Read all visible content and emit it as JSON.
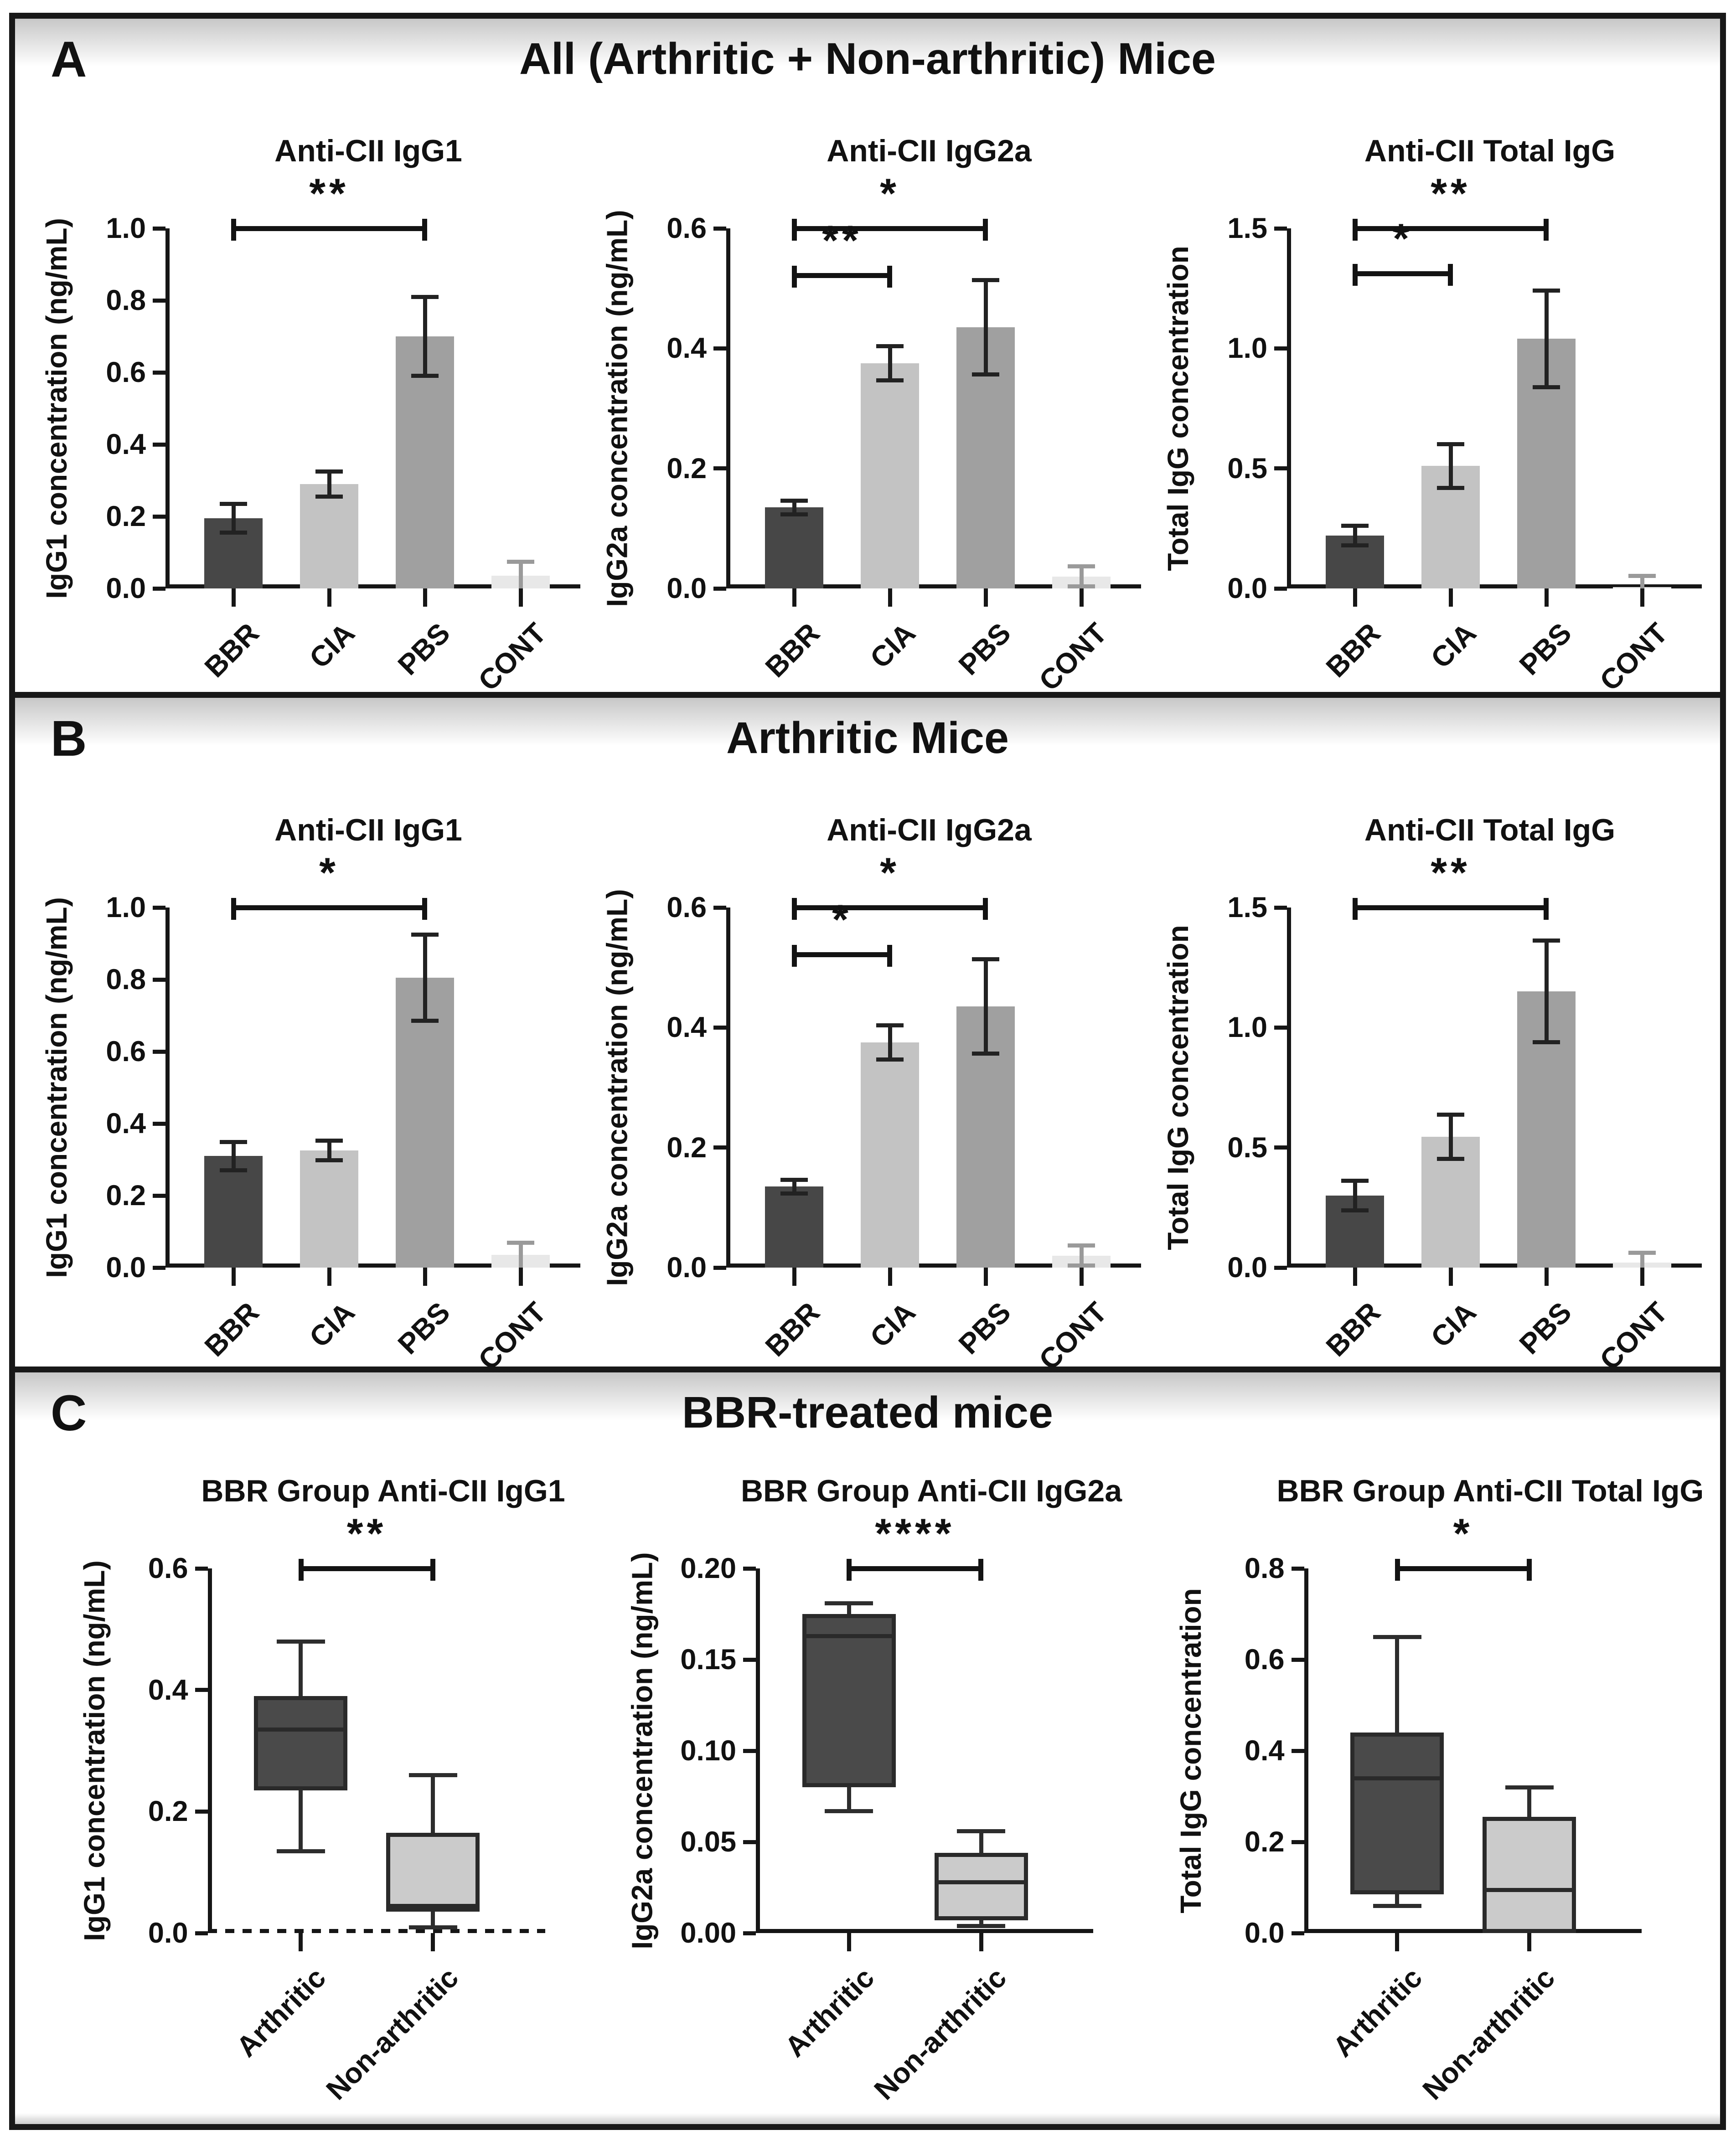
{
  "panels": [
    {
      "label": "A",
      "title": "All (Arthritic + Non-arthritic) Mice",
      "charts": [
        0,
        1,
        2
      ]
    },
    {
      "label": "B",
      "title": "Arthritic Mice",
      "charts": [
        3,
        4,
        5
      ]
    },
    {
      "label": "C",
      "title": "BBR-treated mice",
      "charts": [
        6,
        7,
        8
      ]
    }
  ],
  "chart_data": [
    {
      "type": "bar",
      "title": "Anti-CII IgG1",
      "xlabel": "",
      "ylabel": "IgG1 concentration (ng/mL)",
      "categories": [
        "BBR",
        "CIA",
        "PBS",
        "CONT"
      ],
      "values": [
        0.195,
        0.29,
        0.7,
        0.035
      ],
      "errors": [
        0.045,
        0.04,
        0.115,
        0.045
      ],
      "bar_colors": [
        "#474747",
        "#c3c3c3",
        "#a0a0a0",
        "#e8e8e8"
      ],
      "error_colors": [
        "#222222",
        "#222222",
        "#222222",
        "#9a9a9a"
      ],
      "ylim": [
        0,
        1.0
      ],
      "grid": false,
      "yticks": [
        {
          "v": 0.0,
          "t": "0.0"
        },
        {
          "v": 0.2,
          "t": "0.2"
        },
        {
          "v": 0.4,
          "t": "0.4"
        },
        {
          "v": 0.6,
          "t": "0.6"
        },
        {
          "v": 0.8,
          "t": "0.8"
        },
        {
          "v": 1.0,
          "t": "1.0"
        }
      ],
      "significance": [
        {
          "from": 0,
          "to": 2,
          "yfrac": 1.0,
          "label": "**"
        }
      ]
    },
    {
      "type": "bar",
      "title": "Anti-CII IgG2a",
      "xlabel": "",
      "ylabel": "IgG2a concentration (ng/mL)",
      "categories": [
        "BBR",
        "CIA",
        "PBS",
        "CONT"
      ],
      "values": [
        0.135,
        0.375,
        0.435,
        0.02
      ],
      "errors": [
        0.015,
        0.032,
        0.082,
        0.02
      ],
      "bar_colors": [
        "#474747",
        "#c3c3c3",
        "#a0a0a0",
        "#e8e8e8"
      ],
      "error_colors": [
        "#222222",
        "#222222",
        "#222222",
        "#9a9a9a"
      ],
      "ylim": [
        0,
        0.6
      ],
      "grid": false,
      "yticks": [
        {
          "v": 0.0,
          "t": "0.0"
        },
        {
          "v": 0.2,
          "t": "0.2"
        },
        {
          "v": 0.4,
          "t": "0.4"
        },
        {
          "v": 0.6,
          "t": "0.6"
        }
      ],
      "significance": [
        {
          "from": 0,
          "to": 2,
          "yfrac": 1.0,
          "label": "*"
        },
        {
          "from": 0,
          "to": 1,
          "yfrac": 0.87,
          "label": "**"
        }
      ]
    },
    {
      "type": "bar",
      "title": "Anti-CII Total IgG",
      "xlabel": "",
      "ylabel": "Total IgG concentration",
      "categories": [
        "BBR",
        "CIA",
        "PBS",
        "CONT"
      ],
      "values": [
        0.22,
        0.51,
        1.04,
        0.005
      ],
      "errors": [
        0.05,
        0.1,
        0.21,
        0.055
      ],
      "bar_colors": [
        "#474747",
        "#c3c3c3",
        "#a0a0a0",
        "#e8e8e8"
      ],
      "error_colors": [
        "#222222",
        "#222222",
        "#222222",
        "#9a9a9a"
      ],
      "ylim": [
        0,
        1.5
      ],
      "grid": false,
      "yticks": [
        {
          "v": 0.0,
          "t": "0.0"
        },
        {
          "v": 0.5,
          "t": "0.5"
        },
        {
          "v": 1.0,
          "t": "1.0"
        },
        {
          "v": 1.5,
          "t": "1.5"
        }
      ],
      "significance": [
        {
          "from": 0,
          "to": 2,
          "yfrac": 1.0,
          "label": "**"
        },
        {
          "from": 0,
          "to": 1,
          "yfrac": 0.875,
          "label": "*"
        }
      ]
    },
    {
      "type": "bar",
      "title": "Anti-CII IgG1",
      "xlabel": "",
      "ylabel": "IgG1 concentration (ng/mL)",
      "categories": [
        "BBR",
        "CIA",
        "PBS",
        "CONT"
      ],
      "values": [
        0.31,
        0.325,
        0.805,
        0.035
      ],
      "errors": [
        0.045,
        0.033,
        0.125,
        0.04
      ],
      "bar_colors": [
        "#474747",
        "#c3c3c3",
        "#a0a0a0",
        "#e8e8e8"
      ],
      "error_colors": [
        "#222222",
        "#222222",
        "#222222",
        "#9a9a9a"
      ],
      "ylim": [
        0,
        1.0
      ],
      "grid": false,
      "yticks": [
        {
          "v": 0.0,
          "t": "0.0"
        },
        {
          "v": 0.2,
          "t": "0.2"
        },
        {
          "v": 0.4,
          "t": "0.4"
        },
        {
          "v": 0.6,
          "t": "0.6"
        },
        {
          "v": 0.8,
          "t": "0.8"
        },
        {
          "v": 1.0,
          "t": "1.0"
        }
      ],
      "significance": [
        {
          "from": 0,
          "to": 2,
          "yfrac": 1.0,
          "label": "*"
        }
      ]
    },
    {
      "type": "bar",
      "title": "Anti-CII IgG2a",
      "xlabel": "",
      "ylabel": "IgG2a concentration (ng/mL)",
      "categories": [
        "BBR",
        "CIA",
        "PBS",
        "CONT"
      ],
      "values": [
        0.135,
        0.375,
        0.435,
        0.02
      ],
      "errors": [
        0.015,
        0.032,
        0.082,
        0.02
      ],
      "bar_colors": [
        "#474747",
        "#c3c3c3",
        "#a0a0a0",
        "#e8e8e8"
      ],
      "error_colors": [
        "#222222",
        "#222222",
        "#222222",
        "#9a9a9a"
      ],
      "ylim": [
        0,
        0.6
      ],
      "grid": false,
      "yticks": [
        {
          "v": 0.0,
          "t": "0.0"
        },
        {
          "v": 0.2,
          "t": "0.2"
        },
        {
          "v": 0.4,
          "t": "0.4"
        },
        {
          "v": 0.6,
          "t": "0.6"
        }
      ],
      "significance": [
        {
          "from": 0,
          "to": 2,
          "yfrac": 1.0,
          "label": "*"
        },
        {
          "from": 0,
          "to": 1,
          "yfrac": 0.87,
          "label": "*"
        }
      ]
    },
    {
      "type": "bar",
      "title": "Anti-CII Total IgG",
      "xlabel": "",
      "ylabel": "Total IgG concentration",
      "categories": [
        "BBR",
        "CIA",
        "PBS",
        "CONT"
      ],
      "values": [
        0.3,
        0.545,
        1.15,
        0.02
      ],
      "errors": [
        0.07,
        0.1,
        0.22,
        0.05
      ],
      "bar_colors": [
        "#474747",
        "#c3c3c3",
        "#a0a0a0",
        "#e8e8e8"
      ],
      "error_colors": [
        "#222222",
        "#222222",
        "#222222",
        "#9a9a9a"
      ],
      "ylim": [
        0,
        1.5
      ],
      "grid": false,
      "yticks": [
        {
          "v": 0.0,
          "t": "0.0"
        },
        {
          "v": 0.5,
          "t": "0.5"
        },
        {
          "v": 1.0,
          "t": "1.0"
        },
        {
          "v": 1.5,
          "t": "1.5"
        }
      ],
      "significance": [
        {
          "from": 0,
          "to": 2,
          "yfrac": 1.0,
          "label": "**"
        }
      ]
    },
    {
      "type": "box",
      "title": "BBR Group Anti-CII IgG1",
      "xlabel": "",
      "ylabel": "IgG1 concentration (ng/mL)",
      "categories": [
        "Arthritic",
        "Non-arthritic"
      ],
      "boxes": [
        {
          "whislo": 0.135,
          "q1": 0.235,
          "med": 0.335,
          "q3": 0.39,
          "whishi": 0.48,
          "color": "#4a4a4a"
        },
        {
          "whislo": 0.01,
          "q1": 0.035,
          "med": 0.045,
          "q3": 0.165,
          "whishi": 0.26,
          "color": "#cbcbcb"
        }
      ],
      "ylim": [
        0,
        0.6
      ],
      "grid": false,
      "dashed_axis": true,
      "yticks": [
        {
          "v": 0.0,
          "t": "0.0"
        },
        {
          "v": 0.2,
          "t": "0.2"
        },
        {
          "v": 0.4,
          "t": "0.4"
        },
        {
          "v": 0.6,
          "t": "0.6"
        }
      ],
      "significance": [
        {
          "from": 0,
          "to": 1,
          "yfrac": 1.0,
          "label": "**"
        }
      ]
    },
    {
      "type": "box",
      "title": "BBR Group Anti-CII IgG2a",
      "xlabel": "",
      "ylabel": "IgG2a concentration (ng/mL)",
      "categories": [
        "Arthritic",
        "Non-arthritic"
      ],
      "boxes": [
        {
          "whislo": 0.067,
          "q1": 0.08,
          "med": 0.163,
          "q3": 0.175,
          "whishi": 0.181,
          "color": "#4a4a4a"
        },
        {
          "whislo": 0.004,
          "q1": 0.007,
          "med": 0.028,
          "q3": 0.044,
          "whishi": 0.056,
          "color": "#cbcbcb"
        }
      ],
      "ylim": [
        0,
        0.2
      ],
      "grid": false,
      "dashed_axis": false,
      "yticks": [
        {
          "v": 0.0,
          "t": "0.00"
        },
        {
          "v": 0.05,
          "t": "0.05"
        },
        {
          "v": 0.1,
          "t": "0.10"
        },
        {
          "v": 0.15,
          "t": "0.15"
        },
        {
          "v": 0.2,
          "t": "0.20"
        }
      ],
      "significance": [
        {
          "from": 0,
          "to": 1,
          "yfrac": 1.0,
          "label": "****"
        }
      ]
    },
    {
      "type": "box",
      "title": "BBR Group Anti-CII Total IgG",
      "xlabel": "",
      "ylabel": "Total IgG concentration",
      "categories": [
        "Arthritic",
        "Non-arthritic"
      ],
      "boxes": [
        {
          "whislo": 0.06,
          "q1": 0.085,
          "med": 0.34,
          "q3": 0.44,
          "whishi": 0.65,
          "color": "#4a4a4a"
        },
        {
          "whislo": 0.0,
          "q1": 0.0,
          "med": 0.095,
          "q3": 0.255,
          "whishi": 0.32,
          "color": "#cbcbcb"
        }
      ],
      "ylim": [
        0,
        0.8
      ],
      "grid": false,
      "dashed_axis": false,
      "yticks": [
        {
          "v": 0.0,
          "t": "0.0"
        },
        {
          "v": 0.2,
          "t": "0.2"
        },
        {
          "v": 0.4,
          "t": "0.4"
        },
        {
          "v": 0.6,
          "t": "0.6"
        },
        {
          "v": 0.8,
          "t": "0.8"
        }
      ],
      "significance": [
        {
          "from": 0,
          "to": 1,
          "yfrac": 1.0,
          "label": "*"
        }
      ]
    }
  ]
}
